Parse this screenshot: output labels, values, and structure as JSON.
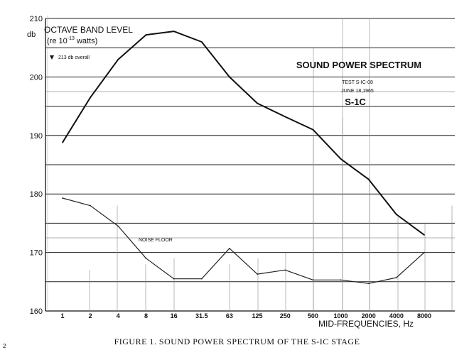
{
  "chart_data": {
    "type": "line",
    "ylabel_unit": "db",
    "ylabel_title": "OCTAVE BAND LEVEL",
    "ylabel_ref_prefix": "(re 10",
    "ylabel_ref_exp": "-13",
    "ylabel_ref_suffix": " watts)",
    "overall_note": "213 db overall",
    "xlabel": "MID-FREQUENCIES, Hz",
    "ylim": [
      160,
      210
    ],
    "yticks": [
      160,
      170,
      180,
      190,
      200,
      210
    ],
    "x": [
      "1",
      "2",
      "4",
      "8",
      "16",
      "31.5",
      "63",
      "125",
      "250",
      "500",
      "1000",
      "2000",
      "4000",
      "8000"
    ],
    "title": "SOUND POWER SPECTRUM",
    "test_label": "TEST S-IC-08",
    "date_label": "JUNE 18,1965",
    "stage_label": "S-1C",
    "series": [
      {
        "values": [
          188.8,
          196.5,
          203.0,
          207.2,
          207.8,
          206.0,
          200.0,
          195.5,
          193.2,
          191.0,
          186.0,
          182.5,
          176.5,
          173.0
        ]
      },
      {
        "name": "NOISE FLOOR",
        "values": [
          179.3,
          178.0,
          174.5,
          169.0,
          165.5,
          165.5,
          170.7,
          166.3,
          167.0,
          165.3,
          165.3,
          164.7,
          165.7,
          170.0
        ]
      }
    ]
  },
  "caption": "FIGURE 1.  SOUND POWER SPECTRUM OF THE S-IC STAGE",
  "margin_mark": "2"
}
